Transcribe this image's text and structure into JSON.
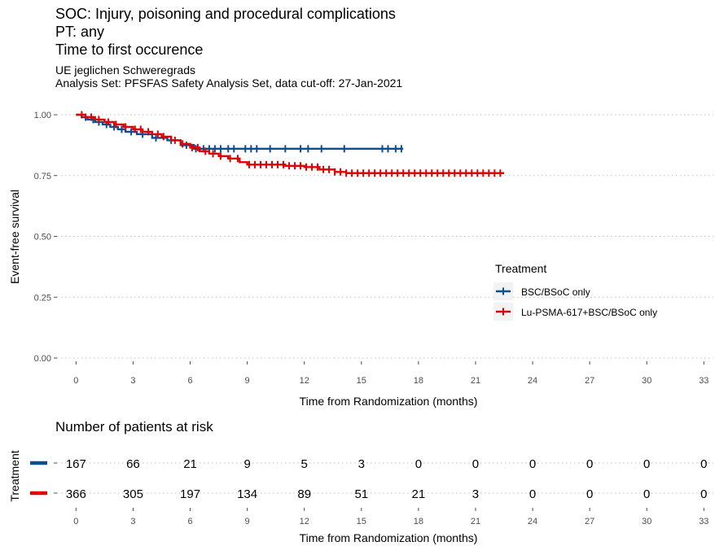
{
  "titles": {
    "line1": "SOC: Injury, poisoning and procedural complications",
    "line2": "PT: any",
    "line3": "Time to first occurence",
    "sub1": "UE jeglichen Schweregrads",
    "sub2": "Analysis Set: PFSFAS Safety Analysis Set, data cut-off: 27-Jan-2021"
  },
  "chart_data": [
    {
      "type": "line",
      "xlabel": "Time from Randomization (months)",
      "ylabel": "Event-free survival",
      "xlim": [
        -1,
        33.5
      ],
      "ylim": [
        0,
        1.0
      ],
      "x_ticks": [
        0,
        3,
        6,
        9,
        12,
        15,
        18,
        21,
        24,
        27,
        30,
        33
      ],
      "y_ticks": [
        0.0,
        0.25,
        0.5,
        0.75,
        1.0
      ],
      "y_tick_labels": [
        "0.00",
        "0.25",
        "0.50",
        "0.75",
        "1.00"
      ],
      "grid": "horizontal dotted",
      "legend": {
        "title": "Treatment",
        "placement": "right",
        "entries": [
          "BSC/BSoC only",
          "Lu-PSMA-617+BSC/BSoC only"
        ]
      },
      "series": [
        {
          "name": "BSC/BSoC only",
          "color": "#0a4f94",
          "steps": [
            [
              0,
              1.0
            ],
            [
              0.3,
              0.99
            ],
            [
              0.6,
              0.98
            ],
            [
              1.0,
              0.97
            ],
            [
              1.4,
              0.96
            ],
            [
              1.8,
              0.95
            ],
            [
              2.2,
              0.94
            ],
            [
              2.6,
              0.93
            ],
            [
              3.2,
              0.92
            ],
            [
              4.0,
              0.905
            ],
            [
              4.8,
              0.895
            ],
            [
              5.5,
              0.875
            ],
            [
              6.2,
              0.86
            ],
            [
              17.2,
              0.86
            ]
          ],
          "censor_x": [
            0.5,
            0.9,
            1.2,
            1.6,
            2.0,
            2.4,
            2.9,
            3.5,
            4.2,
            5.0,
            5.8,
            6.3,
            6.7,
            7.0,
            7.3,
            7.6,
            8.0,
            8.3,
            8.9,
            9.2,
            9.5,
            10.2,
            11.0,
            11.8,
            12.2,
            12.9,
            14.1,
            16.1,
            16.4,
            16.8,
            17.1
          ]
        },
        {
          "name": "Lu-PSMA-617+BSC/BSoC only",
          "color": "#e00000",
          "steps": [
            [
              0,
              1.0
            ],
            [
              0.5,
              0.99
            ],
            [
              1.0,
              0.98
            ],
            [
              1.5,
              0.97
            ],
            [
              2.0,
              0.96
            ],
            [
              2.5,
              0.95
            ],
            [
              3.0,
              0.94
            ],
            [
              3.5,
              0.93
            ],
            [
              4.0,
              0.92
            ],
            [
              4.5,
              0.91
            ],
            [
              5.0,
              0.895
            ],
            [
              5.5,
              0.88
            ],
            [
              6.0,
              0.865
            ],
            [
              6.5,
              0.85
            ],
            [
              7.0,
              0.84
            ],
            [
              7.5,
              0.83
            ],
            [
              8.0,
              0.82
            ],
            [
              8.6,
              0.805
            ],
            [
              9.0,
              0.795
            ],
            [
              11.0,
              0.79
            ],
            [
              12.0,
              0.785
            ],
            [
              12.8,
              0.775
            ],
            [
              13.6,
              0.765
            ],
            [
              14.2,
              0.76
            ],
            [
              22.5,
              0.76
            ]
          ],
          "censor_x": [
            0.3,
            0.8,
            1.2,
            1.7,
            2.1,
            2.6,
            3.1,
            3.4,
            3.8,
            4.3,
            4.6,
            5.2,
            5.6,
            6.1,
            6.4,
            6.8,
            7.2,
            7.6,
            8.1,
            8.5,
            9.1,
            9.4,
            9.7,
            10.0,
            10.3,
            10.6,
            10.9,
            11.2,
            11.5,
            11.8,
            12.1,
            12.4,
            12.7,
            13.0,
            13.3,
            13.6,
            13.9,
            14.2,
            14.5,
            14.8,
            15.1,
            15.4,
            15.7,
            16.0,
            16.3,
            16.6,
            16.9,
            17.2,
            17.5,
            17.8,
            18.1,
            18.4,
            18.7,
            19.0,
            19.3,
            19.6,
            19.9,
            20.2,
            20.5,
            20.8,
            21.1,
            21.4,
            21.7,
            22.0,
            22.3
          ]
        }
      ]
    },
    {
      "type": "table",
      "title": "Number of patients at risk",
      "ylabel": "Treatment",
      "xlabel": "Time from Randomization (months)",
      "x_ticks": [
        0,
        3,
        6,
        9,
        12,
        15,
        18,
        21,
        24,
        27,
        30,
        33
      ],
      "rows": [
        {
          "name": "BSC/BSoC only",
          "color": "#0a4f94",
          "values": [
            167,
            66,
            21,
            9,
            5,
            3,
            0,
            0,
            0,
            0,
            0,
            0
          ]
        },
        {
          "name": "Lu-PSMA-617+BSC/BSoC only",
          "color": "#e00000",
          "values": [
            366,
            305,
            197,
            134,
            89,
            51,
            21,
            3,
            0,
            0,
            0,
            0
          ]
        }
      ]
    }
  ]
}
